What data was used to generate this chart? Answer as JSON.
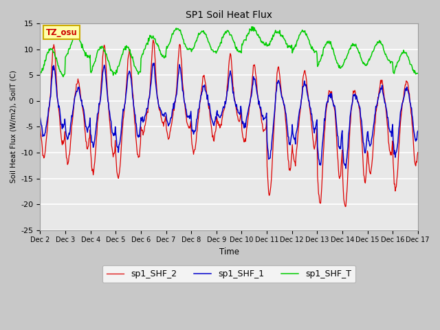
{
  "title": "SP1 Soil Heat Flux",
  "ylabel": "Soil Heat Flux (W/m2), SoilT (C)",
  "xlabel": "Time",
  "ylim": [
    -25,
    15
  ],
  "fig_bg_color": "#c8c8c8",
  "plot_bg_color": "#e8e8e8",
  "grid_color": "#ffffff",
  "tz_label": "TZ_osu",
  "legend": [
    "sp1_SHF_2",
    "sp1_SHF_1",
    "sp1_SHF_T"
  ],
  "line_colors": [
    "#dd0000",
    "#0000cc",
    "#00cc00"
  ],
  "x_tick_labels": [
    "Dec 2",
    "Dec 3",
    "Dec 4",
    "Dec 5",
    "Dec 6",
    "Dec 7",
    "Dec 8",
    "Dec 9",
    "Dec 10",
    "Dec 11",
    "Dec 12",
    "Dec 13",
    "Dec 14",
    "Dec 15",
    "Dec 16",
    "Dec 17"
  ],
  "yticks": [
    -25,
    -20,
    -15,
    -10,
    -5,
    0,
    5,
    10,
    15
  ],
  "n_days": 15,
  "n_per_day": 48
}
